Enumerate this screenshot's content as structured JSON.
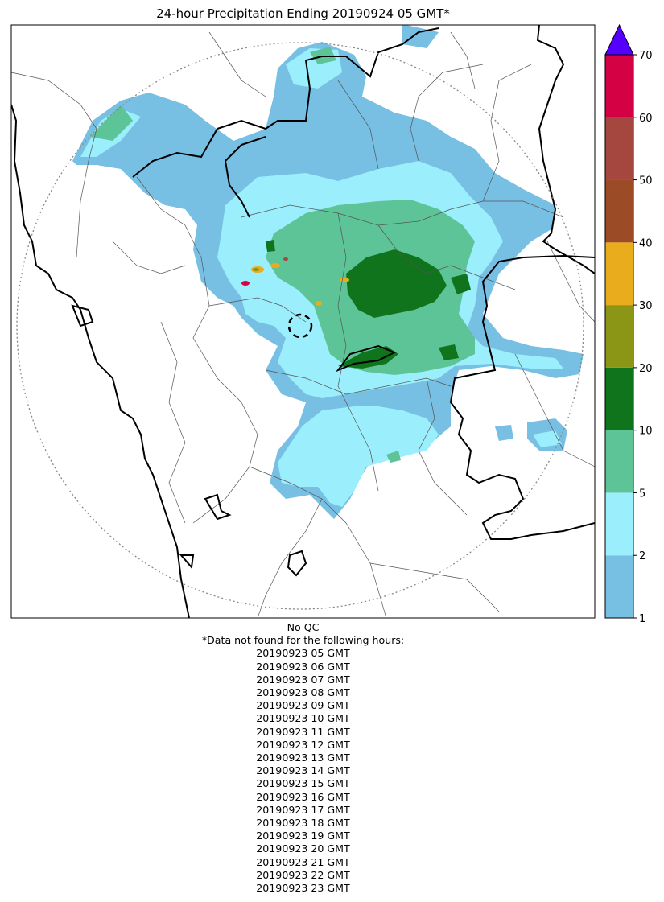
{
  "title": "24-hour Precipitation Ending 20190924 05 GMT*",
  "qc_note": "No QC",
  "missing_header": "*Data not found for the following hours:",
  "missing_hours": [
    "20190923 05 GMT",
    "20190923 06 GMT",
    "20190923 07 GMT",
    "20190923 08 GMT",
    "20190923 09 GMT",
    "20190923 10 GMT",
    "20190923 11 GMT",
    "20190923 12 GMT",
    "20190923 13 GMT",
    "20190923 14 GMT",
    "20190923 15 GMT",
    "20190923 16 GMT",
    "20190923 17 GMT",
    "20190923 18 GMT",
    "20190923 19 GMT",
    "20190923 20 GMT",
    "20190923 21 GMT",
    "20190923 22 GMT",
    "20190923 23 GMT"
  ],
  "colorbar": {
    "ticks": [
      "1",
      "2",
      "5",
      "10",
      "20",
      "30",
      "40",
      "50",
      "60",
      "70"
    ],
    "bins": [
      {
        "from": "1",
        "to": "2",
        "color": "#77bfe3"
      },
      {
        "from": "2",
        "to": "5",
        "color": "#9beefc"
      },
      {
        "from": "5",
        "to": "10",
        "color": "#5dc497"
      },
      {
        "from": "10",
        "to": "20",
        "color": "#0f741b"
      },
      {
        "from": "20",
        "to": "30",
        "color": "#8b9516"
      },
      {
        "from": "30",
        "to": "40",
        "color": "#e8ac1c"
      },
      {
        "from": "40",
        "to": "50",
        "color": "#9b4c27"
      },
      {
        "from": "50",
        "to": "60",
        "color": "#a5473f"
      },
      {
        "from": "60",
        "to": "70",
        "color": "#d40145"
      }
    ],
    "extend_color": "#5500ff"
  },
  "colors": {
    "coastline": "#000000",
    "borders": "#555555",
    "range_ring": "#888888"
  }
}
